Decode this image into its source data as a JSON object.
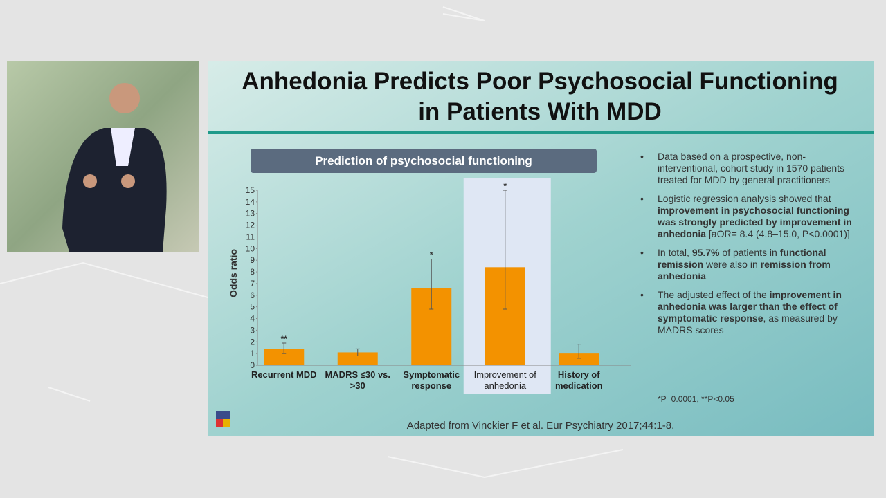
{
  "slide": {
    "title": "Anhedonia Predicts Poor Psychosocial Functioning in Patients With MDD",
    "bullets": [
      [
        {
          "text": "Data based on a prospective, non-interventional, cohort study in 1570 patients treated for MDD by general practitioners",
          "bold": false
        }
      ],
      [
        {
          "text": "Logistic regression analysis showed that ",
          "bold": false
        },
        {
          "text": "improvement in psychosocial functioning was strongly predicted by improvement in anhedonia",
          "bold": true
        },
        {
          "text": " [aOR= 8.4 (4.8–15.0, P<0.0001)]",
          "bold": false
        }
      ],
      [
        {
          "text": "In total, ",
          "bold": false
        },
        {
          "text": "95.7%",
          "bold": true
        },
        {
          "text": " of patients in ",
          "bold": false
        },
        {
          "text": "functional remission",
          "bold": true
        },
        {
          "text": " were also in ",
          "bold": false
        },
        {
          "text": "remission from anhedonia",
          "bold": true
        }
      ],
      [
        {
          "text": "The adjusted effect of the ",
          "bold": false
        },
        {
          "text": "improvement in anhedonia was larger than the effect of symptomatic response",
          "bold": true
        },
        {
          "text": ", as measured by MADRS scores",
          "bold": false
        }
      ]
    ],
    "footnote": "*P=0.0001, **P<0.05",
    "citation": "Adapted from Vinckier F et al. Eur Psychiatry 2017;44:1-8."
  },
  "chart_data": {
    "type": "bar",
    "title": "Prediction of psychosocial functioning",
    "y_label": "Odds ratio",
    "categories": [
      "Recurrent MDD",
      "MADRS ≤30 vs. >30",
      "Symptomatic response",
      "Improvement of anhedonia",
      "History of medication"
    ],
    "values": [
      1.4,
      1.1,
      6.6,
      8.4,
      1.0
    ],
    "ci_low": [
      1.0,
      0.8,
      4.8,
      4.8,
      0.6
    ],
    "ci_high": [
      1.9,
      1.4,
      9.1,
      15.0,
      1.8
    ],
    "annotations": [
      "**",
      null,
      "*",
      "*",
      null
    ],
    "highlight": 3,
    "color": "#f39200",
    "ylim": [
      0,
      15
    ],
    "yticks": [
      0,
      1,
      2,
      3,
      4,
      5,
      6,
      7,
      8,
      9,
      10,
      11,
      12,
      13,
      14,
      15
    ],
    "grid": false
  }
}
